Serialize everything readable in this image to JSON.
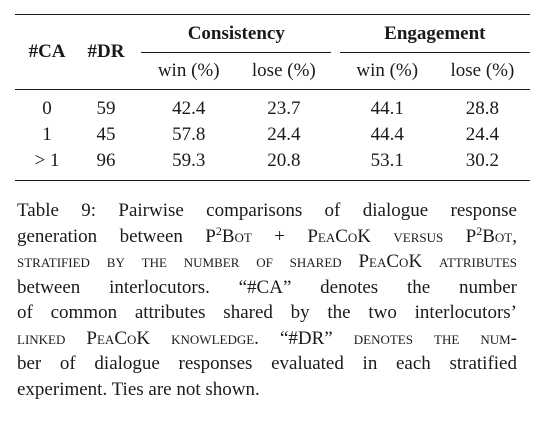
{
  "table": {
    "col_ca": "#CA",
    "col_dr": "#DR",
    "group_consistency": "Consistency",
    "group_engagement": "Engagement",
    "sub_win": "win (%)",
    "sub_lose": "lose (%)",
    "rows": [
      {
        "ca": "0",
        "dr": "59",
        "cons_win": "42.4",
        "cons_lose": "23.7",
        "eng_win": "44.1",
        "eng_lose": "28.8"
      },
      {
        "ca": "1",
        "dr": "45",
        "cons_win": "57.8",
        "cons_lose": "24.4",
        "eng_win": "44.4",
        "eng_lose": "24.4"
      },
      {
        "ca": "> 1",
        "dr": "96",
        "cons_win": "59.3",
        "cons_lose": "20.8",
        "eng_win": "53.1",
        "eng_lose": "30.2"
      }
    ]
  },
  "caption": {
    "l1": "Table 9: Pairwise comparisons of dialogue response",
    "l2a": "generation between P",
    "l2sup": "2",
    "l2b": "Bot + PeaCoK versus P",
    "l2sup2": "2",
    "l2c": "Bot,",
    "l3": "stratified by the number of shared PeaCoK attributes",
    "l4": "between interlocutors.   “#CA” denotes the number",
    "l5": "of common attributes shared by the two interlocutors’",
    "l6": "linked PeaCoK knowledge. “#DR” denotes the num-",
    "l7": "ber of dialogue responses evaluated in each stratified",
    "l8": "experiment. Ties are not shown."
  }
}
